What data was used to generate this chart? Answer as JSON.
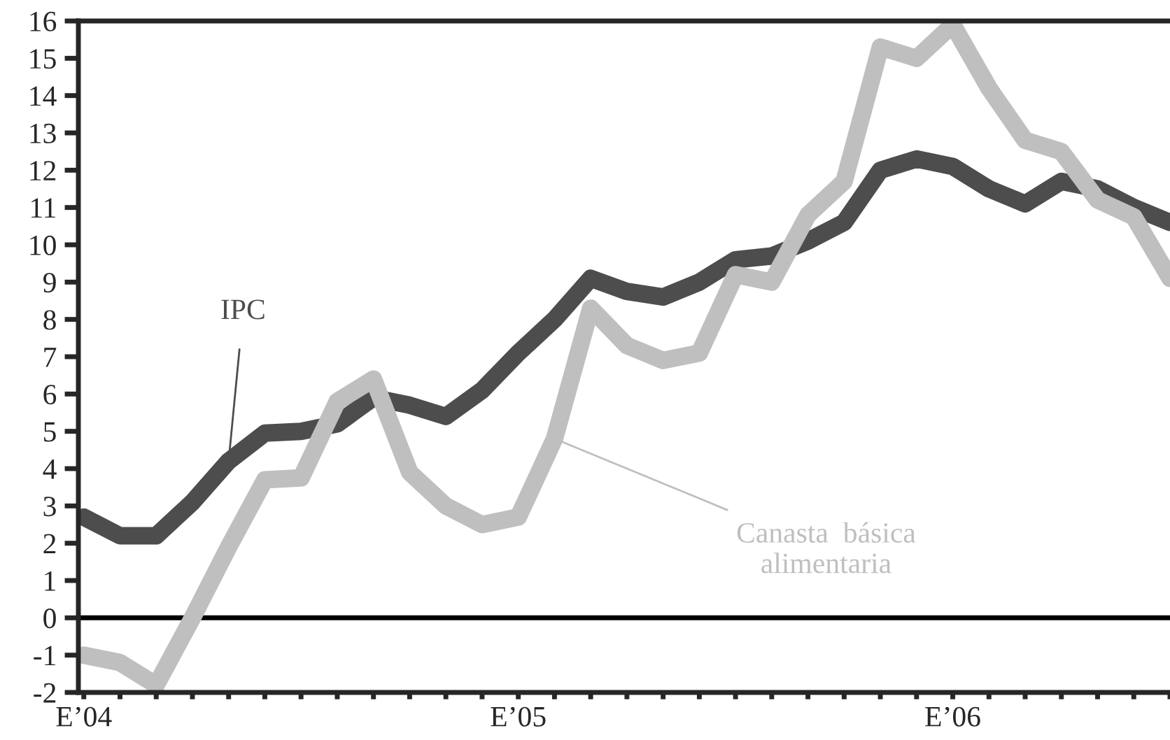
{
  "chart_data": {
    "type": "line",
    "categories": [
      "E’04",
      null,
      null,
      null,
      null,
      null,
      null,
      null,
      null,
      null,
      null,
      null,
      "E’05",
      null,
      null,
      null,
      null,
      null,
      null,
      null,
      null,
      null,
      null,
      null,
      "E’06",
      null,
      null,
      null,
      null,
      null,
      null
    ],
    "series": [
      {
        "name": "IPC",
        "color": "#4d4d4d",
        "values": [
          2.7,
          2.2,
          2.2,
          3.1,
          4.2,
          4.95,
          5.0,
          5.2,
          5.9,
          5.7,
          5.4,
          6.1,
          7.1,
          8.0,
          9.1,
          8.75,
          8.6,
          9.0,
          9.6,
          9.7,
          10.1,
          10.6,
          12.0,
          12.3,
          12.1,
          11.5,
          11.1,
          11.7,
          11.5,
          11.0,
          10.6
        ]
      },
      {
        "name": "Canasta  básica\nalimentaria",
        "color": "#bfbfbf",
        "values": [
          -1.0,
          -1.2,
          -1.8,
          0.0,
          1.9,
          3.7,
          3.75,
          5.8,
          6.4,
          3.9,
          3.0,
          2.5,
          2.7,
          4.8,
          8.3,
          7.3,
          6.9,
          7.1,
          9.2,
          9.0,
          10.8,
          11.7,
          15.3,
          15.0,
          15.9,
          14.2,
          12.8,
          12.5,
          11.2,
          10.75,
          9.1
        ]
      }
    ],
    "ylim": [
      -2,
      16
    ],
    "yticks": [
      -2,
      -1,
      0,
      1,
      2,
      3,
      4,
      5,
      6,
      7,
      8,
      9,
      10,
      11,
      12,
      13,
      14,
      15,
      16
    ],
    "ref_lines": [
      {
        "axis": "y",
        "value": 0,
        "color": "#000000"
      }
    ],
    "grid": false,
    "marker": "none",
    "line_style": "solid"
  }
}
